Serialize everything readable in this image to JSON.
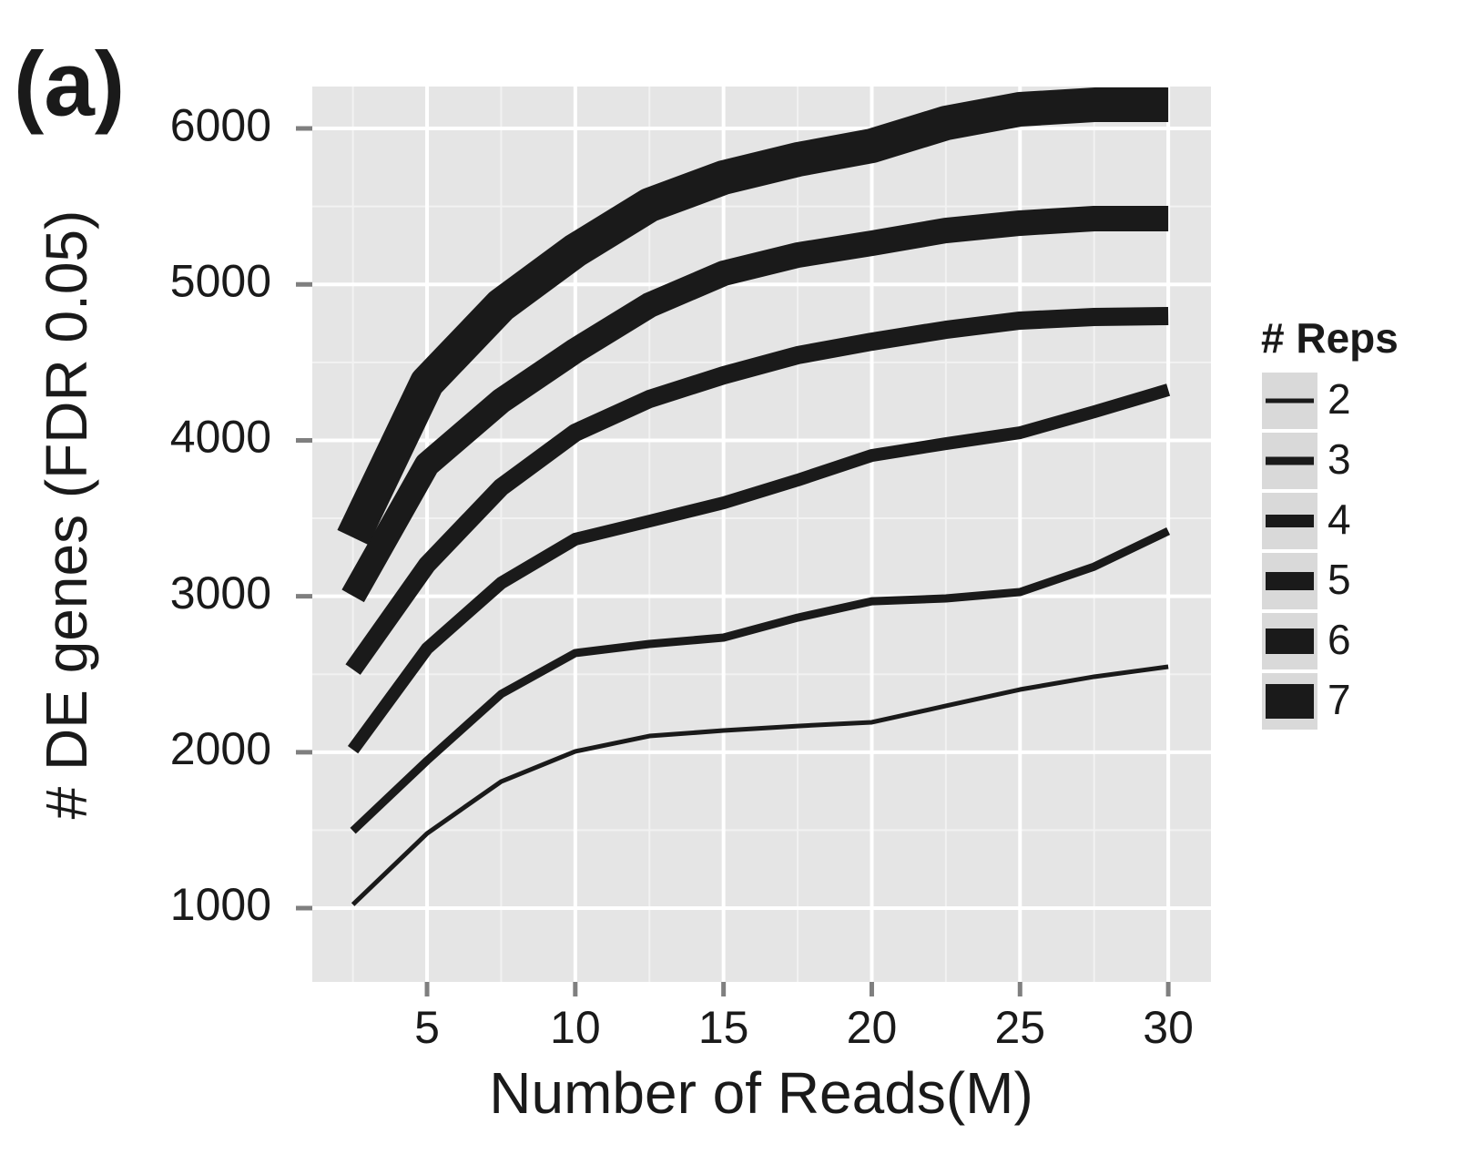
{
  "chart_data": {
    "type": "line",
    "panel_label": "(a)",
    "xlabel": "Number of Reads(M)",
    "ylabel": "# DE genes (FDR 0.05)",
    "legend_title": "# Reps",
    "x": [
      2.5,
      5,
      7.5,
      10,
      12.5,
      15,
      17.5,
      20,
      22.5,
      25,
      27.5,
      30
    ],
    "series": [
      {
        "name": "2",
        "color": "#1a1a1a",
        "values": [
          1023,
          1479,
          1812,
          2005,
          2104,
          2139,
          2168,
          2192,
          2297,
          2402,
          2484,
          2548
        ]
      },
      {
        "name": "3",
        "color": "#1a1a1a",
        "values": [
          1496,
          1946,
          2373,
          2636,
          2694,
          2735,
          2863,
          2968,
          2986,
          3027,
          3190,
          3418
        ]
      },
      {
        "name": "4",
        "color": "#1a1a1a",
        "values": [
          2016,
          2665,
          3085,
          3366,
          3482,
          3599,
          3745,
          3903,
          3979,
          4049,
          4183,
          4324
        ]
      },
      {
        "name": "5",
        "color": "#1a1a1a",
        "values": [
          2530,
          3202,
          3699,
          4049,
          4265,
          4417,
          4546,
          4633,
          4709,
          4768,
          4791,
          4797
        ]
      },
      {
        "name": "6",
        "color": "#1a1a1a",
        "values": [
          3002,
          3845,
          4253,
          4575,
          4867,
          5071,
          5188,
          5264,
          5346,
          5393,
          5422,
          5422
        ]
      },
      {
        "name": "7",
        "color": "#1a1a1a",
        "values": [
          3377,
          4370,
          4867,
          5217,
          5509,
          5685,
          5801,
          5889,
          6035,
          6123,
          6152,
          6152
        ]
      }
    ],
    "xlim": [
      1.13,
      31.44
    ],
    "xticks": [
      5,
      10,
      15,
      20,
      25,
      30
    ],
    "ylim": [
      527,
      6269
    ],
    "yticks": [
      1000,
      2000,
      3000,
      4000,
      5000,
      6000
    ],
    "grid": true
  }
}
